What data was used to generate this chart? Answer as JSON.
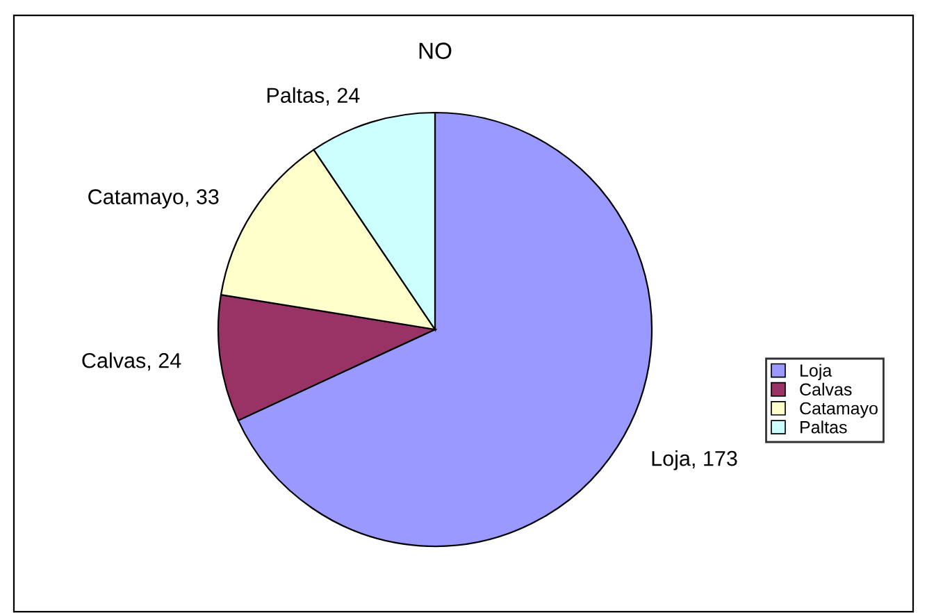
{
  "chart_data": {
    "type": "pie",
    "title": "NO",
    "categories": [
      "Loja",
      "Calvas",
      "Catamayo",
      "Paltas"
    ],
    "values": [
      173,
      24,
      33,
      24
    ],
    "colors": [
      "#9999ff",
      "#993366",
      "#ffffcc",
      "#ccffff"
    ],
    "value_labels": [
      ", 173",
      ", 24",
      ", 33",
      ", 24"
    ],
    "legend": "right"
  }
}
